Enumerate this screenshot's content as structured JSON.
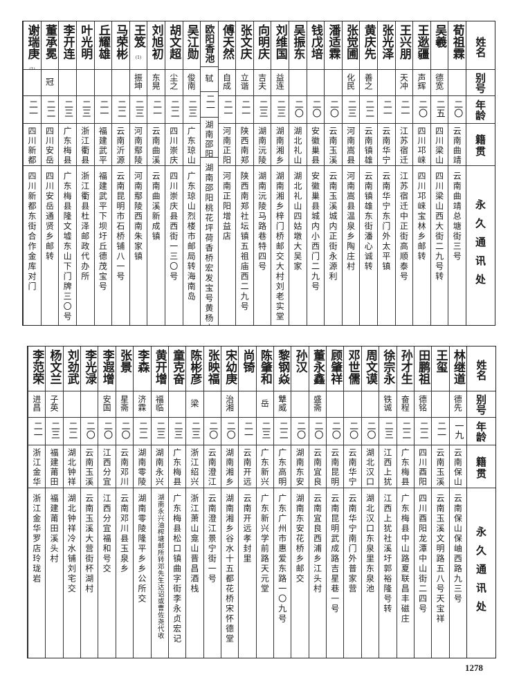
{
  "headers": {
    "name": "姓名",
    "alias": "别号",
    "age": "年龄",
    "origin": "籍贯",
    "address": "永久通讯处"
  },
  "top_table": [
    {
      "name": "荀祖霖",
      "alias": "",
      "age": "二〇",
      "origin": "云南曲靖",
      "address": "云南曲靖总塘街三号"
    },
    {
      "name": "吴羲",
      "alias": "德宽",
      "age": "二五",
      "origin": "四川梁山",
      "address": "四川梁山西大街二九号转"
    },
    {
      "name": "王逖疆",
      "alias": "声辉",
      "age": "二〇",
      "origin": "四川邛崃",
      "address": "四川邛崃宝林乡邮转"
    },
    {
      "name": "王兴朋",
      "alias": "天冲",
      "age": "二一",
      "origin": "江苏宿迁",
      "address": "江苏宿迁中正街高顺泰号"
    },
    {
      "name": "张光泽",
      "alias": "",
      "age": "二一",
      "origin": "云南华宁",
      "address": "云南华宁东门外太平镇"
    },
    {
      "name": "黄庆先",
      "alias": "善之",
      "age": "二二",
      "origin": "云南镇雄",
      "address": "云南镇雄东街潘心诚转"
    },
    {
      "name": "张觉圃",
      "alias": "化民",
      "age": "二三",
      "origin": "河南嵩县",
      "address": "河南嵩县温泉乡陶庄村"
    },
    {
      "name": "潘适霖",
      "alias": "",
      "age": "二〇",
      "origin": "云南玉溪",
      "address": "云南玉溪城内正街永源利"
    },
    {
      "name": "钱戊培",
      "alias": "",
      "age": "二〇",
      "origin": "安徽巢县",
      "address": "安徽巢县城内小西门二九号"
    },
    {
      "name": "吴振东",
      "alias": "",
      "age": "二〇",
      "origin": "湖北礼山",
      "address": "湖北礼山四姑墩大吴家"
    },
    {
      "name": "刘维国",
      "alias": "益连",
      "age": "二三",
      "origin": "湖南湘乡",
      "address": "湖南湘乡梓门桥邮交大村刘老实堂"
    },
    {
      "name": "向明庆",
      "alias": "吉夫",
      "age": "二三",
      "origin": "湖南沅陵",
      "address": "湖南沅陵马路巷特四号"
    },
    {
      "name": "张文庆",
      "alias": "立谐",
      "age": "二一",
      "origin": "陕西南郑",
      "address": "陕西南郑社坛镇五祖庙西二九号"
    },
    {
      "name": "傅天然",
      "alias": "自成",
      "age": "二一",
      "origin": "河南正阳",
      "address": "河南正阳增益店"
    },
    {
      "name": "欧阳香池",
      "alias": "轼",
      "age": "二一",
      "origin": "湖南邵阳",
      "address": "湖南邵阳桃花坪荷香桥宏发宝号黄杨山"
    },
    {
      "name": "吴江勋",
      "alias": "俊南",
      "age": "二三",
      "origin": "广东琼山",
      "address": "广东琼山烈楼市邮局转海南岛"
    },
    {
      "name": "胡文超",
      "alias": "尘之",
      "age": "二二",
      "origin": "四川崇庆",
      "address": "四川崇庆县西街一三〇号"
    },
    {
      "name": "刘旭初",
      "alias": "东晃",
      "age": "二一",
      "origin": "云南曲溪",
      "address": "云南曲溪新成镇"
    },
    {
      "name": "王笈",
      "note": "(1)",
      "alias": "振坤",
      "age": "二三",
      "origin": "河南鄢陵",
      "address": "河南鄢陵西南朱家镇"
    },
    {
      "name": "马荣彬",
      "alias": "",
      "age": "二二",
      "origin": "云南沂源",
      "address": "云南昆明市石桥铺八一号"
    },
    {
      "name": "丘耀雄",
      "alias": "",
      "age": "二一",
      "origin": "福建武平",
      "address": "福建武平下坝圩丘德茂宝号"
    },
    {
      "name": "叶光明",
      "alias": "",
      "age": "二三",
      "origin": "浙江衢县",
      "address": "浙江衢县杜泽邮政代办所"
    },
    {
      "name": "李开连",
      "alias": "",
      "age": "二三",
      "origin": "广东梅县",
      "address": "广东梅县隆文墟东山下门牌三〇号"
    },
    {
      "name": "董承冕",
      "alias": "冠",
      "age": "二二",
      "origin": "四川安岳",
      "address": "四川安岳通贤乡邮转"
    },
    {
      "name": "谢瑞庚",
      "note": "(1)",
      "alias": "",
      "age": "二一",
      "origin": "四川新都",
      "address": "四川新都东街合作金库对门"
    }
  ],
  "bottom_table": [
    {
      "name": "林继道",
      "alias": "德先",
      "age": "一九",
      "origin": "云南保山",
      "address": "云南保山保岫西路九三号"
    },
    {
      "name": "王玺",
      "alias": "",
      "age": "二一",
      "origin": "云南玉溪",
      "address": "云南玉溪文明路五八号天宝祥"
    },
    {
      "name": "田鹏祖",
      "alias": "德铭",
      "age": "二二",
      "origin": "四川酉阳",
      "address": "四川酉阳龙潭中山街二四号"
    },
    {
      "name": "孙才生",
      "alias": "奋程",
      "age": "二二",
      "origin": "广东梅县",
      "address": "广东梅县中山路夏联昌丰磁庄"
    },
    {
      "name": "徐宗永",
      "alias": "铁诚",
      "age": "二三",
      "origin": "江西上犹",
      "address": "江西上犹社溪圩郭裕隆号转"
    },
    {
      "name": "周文谟",
      "alias": "",
      "age": "二〇",
      "origin": "湖北汉口",
      "address": "湖北汉口东泉里东泉池"
    },
    {
      "name": "邓世儒",
      "alias": "",
      "age": "二〇",
      "origin": "云南华宁",
      "address": "云南华宁南门外普家营"
    },
    {
      "name": "顾肇祥",
      "alias": "",
      "age": "二〇",
      "origin": "云南昆明",
      "address": "云南昆明武成路吉星巷一号"
    },
    {
      "name": "董永鑫",
      "alias": "盛斋",
      "age": "二〇",
      "origin": "云南宜良",
      "address": "云南宜良西浦乡江头村"
    },
    {
      "name": "孙汉",
      "alias": "",
      "age": "二〇",
      "origin": "湖南东安",
      "address": "湖南东安花桥乡邮交"
    },
    {
      "name": "黎钢焱",
      "alias": "犨威",
      "age": "二二",
      "origin": "广东高明",
      "address": "广东广州市惠爱东路一〇九号"
    },
    {
      "name": "陈肇和",
      "alias": "岳",
      "age": "二三",
      "origin": "广东新兴",
      "address": "广东新兴学前路天元堂"
    },
    {
      "name": "尚锜",
      "alias": "",
      "age": "二一",
      "origin": "云南开远",
      "address": "云南开远孝封里"
    },
    {
      "name": "宋幼庚",
      "alias": "治湘",
      "age": "二〇",
      "origin": "湖南湘乡",
      "address": "湖南湘乡谷水十五都花桥宋怀德堂"
    },
    {
      "name": "张映福",
      "alias": "",
      "age": "二〇",
      "origin": "云南澄江",
      "address": "云南澄江景宁街一号"
    },
    {
      "name": "陈彬彦",
      "alias": "梁",
      "age": "二三",
      "origin": "浙江绍兴",
      "address": "浙江萧山龛山晋昌酒栈"
    },
    {
      "name": "童克奋",
      "alias": "",
      "age": "二三",
      "origin": "广东梅县",
      "address": "广东梅县松口镇曲字街李永贞宏记"
    },
    {
      "name": "黄开增",
      "alias": "福临",
      "age": "二三",
      "origin": "湖南永兴",
      "address": "湖南永兴油榨塘邮所转邓先生达诏或曹佐尧代收"
    },
    {
      "name": "李森",
      "alias": "济霖",
      "age": "二二",
      "origin": "湖南零陵",
      "address": "湖南零陵隆平乡乡公所交"
    },
    {
      "name": "张景",
      "alias": "星斋",
      "age": "二〇",
      "origin": "云南邓川",
      "address": "云南邓川县玉泉乡"
    },
    {
      "name": "李遐增",
      "alias": "安国",
      "age": "二〇",
      "origin": "江西分宜",
      "address": "江西分宜福和号交"
    },
    {
      "name": "李光渌",
      "alias": "",
      "age": "二〇",
      "origin": "云南玉溪",
      "address": "云南玉溪大营街杯湖村"
    },
    {
      "name": "刘劲武",
      "alias": "",
      "age": "二二",
      "origin": "湖北钟祥",
      "address": "湖北钟祥冷水铺刘宅交"
    },
    {
      "name": "杨文兰",
      "alias": "子英",
      "age": "二三",
      "origin": "福建莆田",
      "address": "福建莆田溪头村"
    },
    {
      "name": "李范荣",
      "alias": "进昌",
      "age": "二一",
      "origin": "浙江金华",
      "address": "浙江金华罗店玲珑岩"
    }
  ],
  "page_number": "1278"
}
